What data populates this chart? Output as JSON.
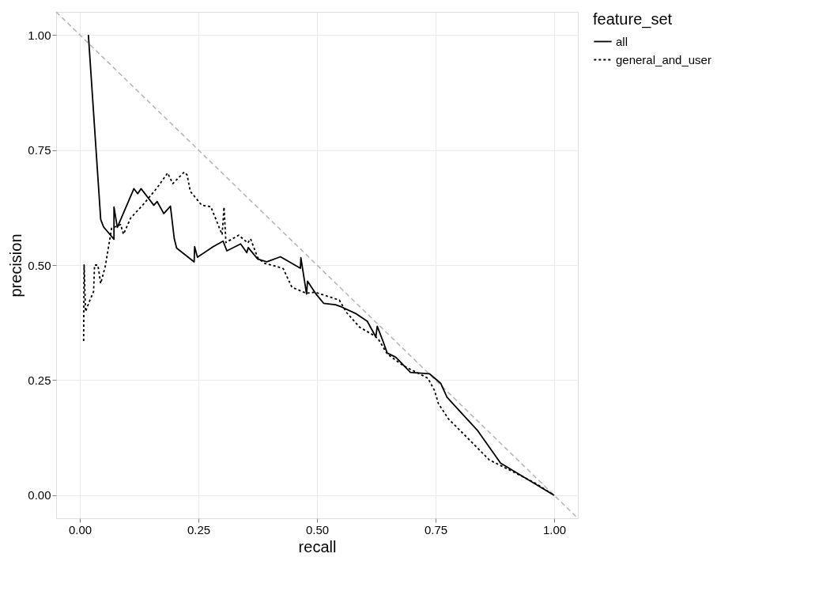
{
  "chart_data": {
    "type": "line",
    "xlabel": "recall",
    "ylabel": "precision",
    "legend_title": "feature_set",
    "xlim": [
      -0.05,
      1.05
    ],
    "ylim": [
      -0.05,
      1.05
    ],
    "xticks": [
      {
        "value": 0,
        "label": "0.00"
      },
      {
        "value": 0.25,
        "label": "0.25"
      },
      {
        "value": 0.5,
        "label": "0.50"
      },
      {
        "value": 0.75,
        "label": "0.75"
      },
      {
        "value": 1,
        "label": "1.00"
      }
    ],
    "yticks": [
      {
        "value": 0,
        "label": "0.00"
      },
      {
        "value": 0.25,
        "label": "0.25"
      },
      {
        "value": 0.5,
        "label": "0.50"
      },
      {
        "value": 0.75,
        "label": "0.75"
      },
      {
        "value": 1,
        "label": "1.00"
      }
    ],
    "grid": true,
    "legend": "right",
    "series": [
      {
        "color": "#b3b3b3",
        "line_style": "dashed",
        "x": [
          -0.05,
          1.05
        ],
        "values": [
          1.05,
          -0.05
        ]
      },
      {
        "name": "all",
        "color": "#000000",
        "line_style": "solid",
        "x": [
          0.018,
          0.044,
          0.05,
          0.072,
          0.072,
          0.079,
          0.114,
          0.122,
          0.129,
          0.156,
          0.163,
          0.177,
          0.191,
          0.199,
          0.204,
          0.241,
          0.242,
          0.248,
          0.281,
          0.302,
          0.31,
          0.339,
          0.352,
          0.355,
          0.375,
          0.394,
          0.423,
          0.465,
          0.466,
          0.478,
          0.48,
          0.498,
          0.514,
          0.539,
          0.552,
          0.583,
          0.606,
          0.624,
          0.627,
          0.639,
          0.648,
          0.666,
          0.697,
          0.737,
          0.761,
          0.774,
          0.839,
          0.887,
          1.0
        ],
        "values": [
          1.0,
          0.599,
          0.583,
          0.556,
          0.626,
          0.582,
          0.666,
          0.655,
          0.666,
          0.63,
          0.638,
          0.612,
          0.628,
          0.558,
          0.537,
          0.507,
          0.54,
          0.517,
          0.54,
          0.552,
          0.531,
          0.546,
          0.527,
          0.538,
          0.513,
          0.507,
          0.518,
          0.493,
          0.516,
          0.437,
          0.465,
          0.437,
          0.417,
          0.414,
          0.409,
          0.394,
          0.378,
          0.344,
          0.367,
          0.335,
          0.309,
          0.3,
          0.267,
          0.264,
          0.243,
          0.213,
          0.14,
          0.07,
          0.0
        ]
      },
      {
        "name": "general_and_user",
        "color": "#000000",
        "line_style": "dotted",
        "x": [
          0.008,
          0.009,
          0.012,
          0.019,
          0.029,
          0.031,
          0.038,
          0.044,
          0.054,
          0.067,
          0.086,
          0.092,
          0.107,
          0.134,
          0.163,
          0.185,
          0.196,
          0.22,
          0.226,
          0.233,
          0.257,
          0.276,
          0.3,
          0.304,
          0.308,
          0.335,
          0.354,
          0.36,
          0.375,
          0.389,
          0.418,
          0.429,
          0.447,
          0.477,
          0.496,
          0.547,
          0.563,
          0.59,
          0.622,
          0.63,
          0.648,
          0.681,
          0.723,
          0.734,
          0.748,
          0.756,
          0.777,
          0.815,
          0.863,
          0.906,
          0.959,
          1.0
        ],
        "values": [
          0.335,
          0.5,
          0.399,
          0.418,
          0.443,
          0.5,
          0.5,
          0.46,
          0.499,
          0.58,
          0.588,
          0.567,
          0.602,
          0.632,
          0.668,
          0.7,
          0.677,
          0.702,
          0.696,
          0.66,
          0.63,
          0.627,
          0.566,
          0.626,
          0.549,
          0.565,
          0.548,
          0.557,
          0.516,
          0.504,
          0.496,
          0.492,
          0.452,
          0.439,
          0.441,
          0.424,
          0.396,
          0.365,
          0.346,
          0.338,
          0.307,
          0.282,
          0.26,
          0.254,
          0.227,
          0.199,
          0.166,
          0.127,
          0.077,
          0.055,
          0.027,
          0.0
        ]
      }
    ]
  }
}
